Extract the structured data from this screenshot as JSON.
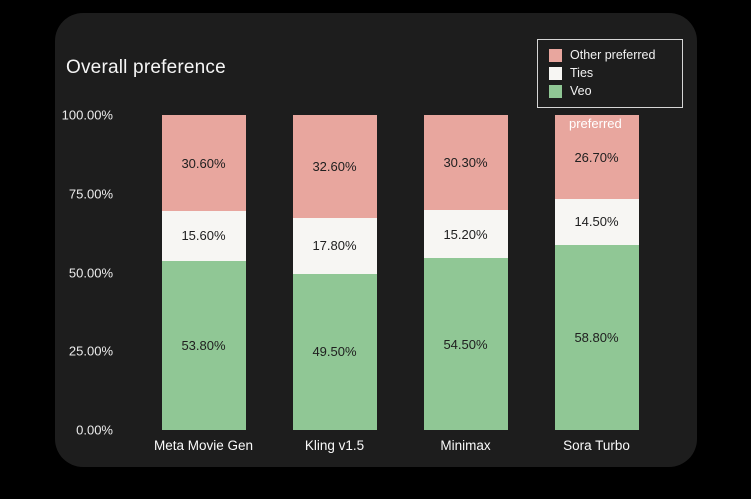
{
  "page": {
    "background_color": "#000000",
    "card_background_color": "#1d1d1d"
  },
  "chart_data": {
    "type": "bar",
    "stacked": true,
    "title": "Overall preference",
    "categories": [
      "Meta Movie Gen",
      "Kling v1.5",
      "Minimax",
      "Sora Turbo"
    ],
    "series": [
      {
        "name": "Other preferred",
        "color": "#e8a69e",
        "values": [
          30.6,
          32.6,
          30.3,
          26.7
        ],
        "labels": [
          "30.60%",
          "32.60%",
          "30.30%",
          "26.70%"
        ]
      },
      {
        "name": "Ties",
        "color": "#f7f6f3",
        "values": [
          15.6,
          17.8,
          15.2,
          14.5
        ],
        "labels": [
          "15.60%",
          "17.80%",
          "15.20%",
          "14.50%"
        ]
      },
      {
        "name": "Veo",
        "color": "#90c795",
        "values": [
          53.8,
          49.5,
          54.5,
          58.8
        ],
        "labels": [
          "53.80%",
          "49.50%",
          "54.50%",
          "58.80%"
        ]
      }
    ],
    "y_ticks": [
      "100.00%",
      "75.00%",
      "50.00%",
      "25.00%",
      "0.00%"
    ],
    "ylim": [
      0,
      100
    ],
    "xlabel": "",
    "ylabel": "",
    "grid": false,
    "legend_position": "top-right",
    "legend_overflow": "preferred",
    "segment_label_color": "#202020"
  }
}
